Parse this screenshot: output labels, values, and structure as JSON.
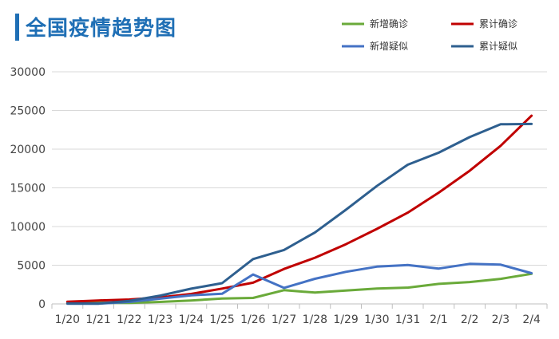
{
  "header": {
    "title": "全国疫情趋势图"
  },
  "chart_data": {
    "type": "line",
    "title": "全国疫情趋势图",
    "xlabel": "",
    "ylabel": "",
    "categories": [
      "1/20",
      "1/21",
      "1/22",
      "1/23",
      "1/24",
      "1/25",
      "1/26",
      "1/27",
      "1/28",
      "1/29",
      "1/30",
      "1/31",
      "2/1",
      "2/2",
      "2/3",
      "2/4"
    ],
    "ylim": [
      0,
      30000
    ],
    "yticks": [
      0,
      5000,
      10000,
      15000,
      20000,
      25000,
      30000
    ],
    "grid": "horizontal",
    "legend_position": "top-right",
    "series": [
      {
        "name": "新增确诊",
        "color": "#6aaa3a",
        "values": [
          77,
          149,
          131,
          259,
          444,
          688,
          769,
          1771,
          1459,
          1737,
          1982,
          2102,
          2590,
          2829,
          3235,
          3887
        ]
      },
      {
        "name": "累计确诊",
        "color": "#c00000",
        "values": [
          291,
          440,
          571,
          830,
          1287,
          1975,
          2744,
          4515,
          5974,
          7711,
          9692,
          11791,
          14380,
          17205,
          20438,
          24324
        ]
      },
      {
        "name": "新增疑似",
        "color": "#4472c4",
        "values": [
          27,
          26,
          257,
          680,
          1118,
          1309,
          3806,
          2077,
          3248,
          4148,
          4812,
          5019,
          4562,
          5173,
          5072,
          3971
        ]
      },
      {
        "name": "累计疑似",
        "color": "#2e5f8f",
        "values": [
          54,
          37,
          393,
          1072,
          1965,
          2684,
          5794,
          6973,
          9239,
          12167,
          15238,
          17988,
          19544,
          21558,
          23214,
          23260
        ]
      }
    ]
  }
}
